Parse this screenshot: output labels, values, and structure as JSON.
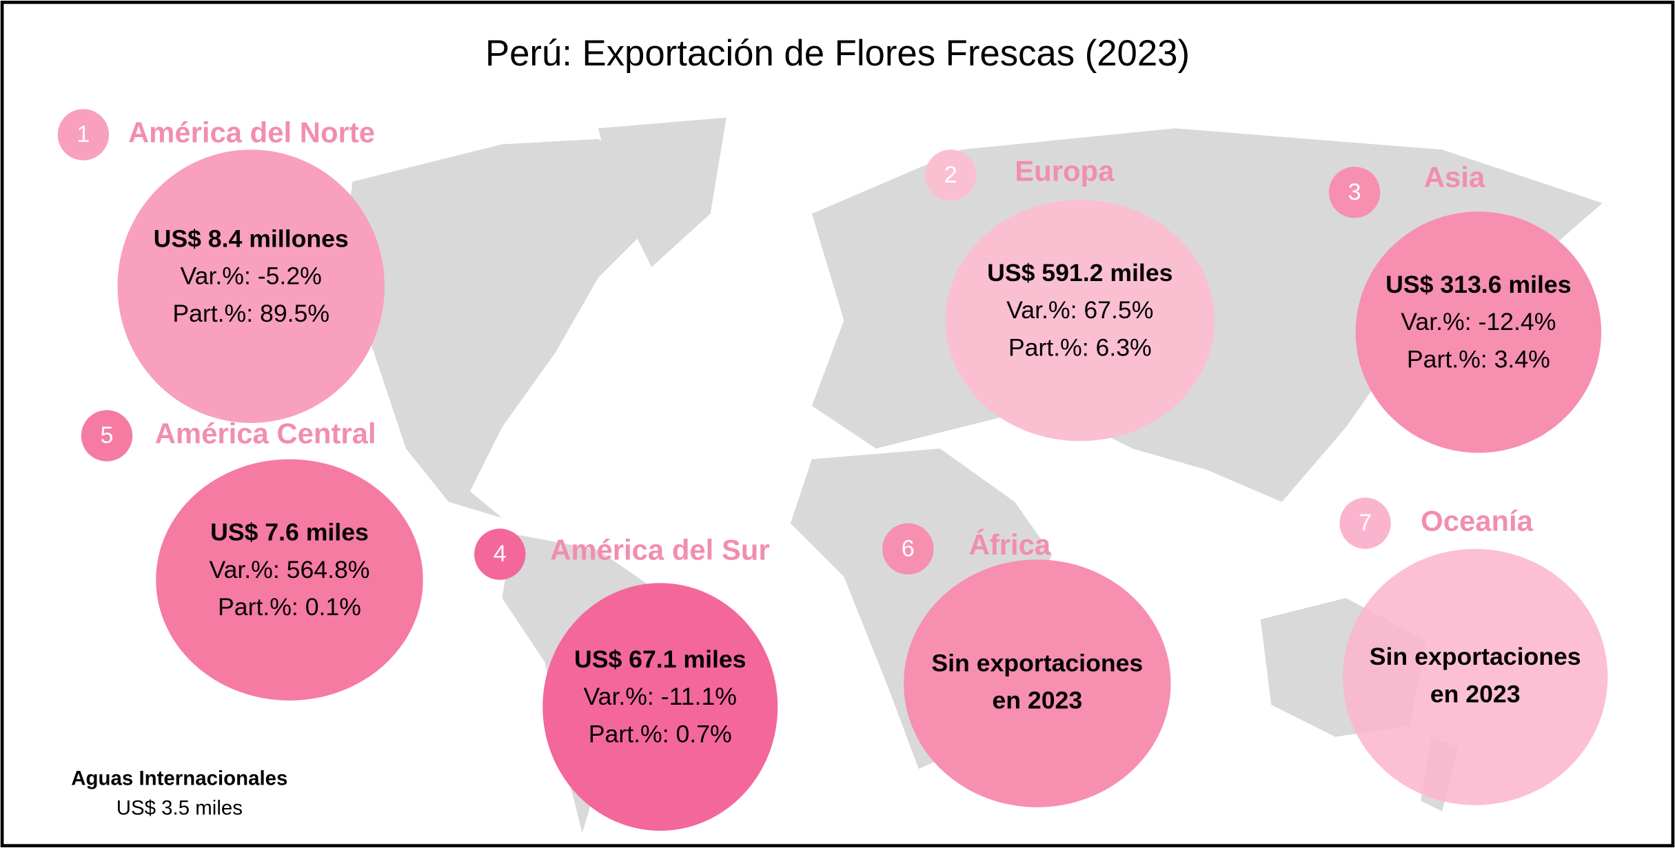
{
  "title": "Perú: Exportación de Flores Frescas (2023)",
  "regions": [
    {
      "number": 1,
      "name": "América del Norte",
      "color": "#f8a0bd",
      "lines": [
        "US$ 8.4 millones",
        "Var.%: -5.2%",
        "Part.%: 89.5%"
      ]
    },
    {
      "number": 2,
      "name": "Europa",
      "color": "#fbbfd2",
      "lines": [
        "US$ 591.2 miles",
        "Var.%: 67.5%",
        "Part.%: 6.3%"
      ]
    },
    {
      "number": 3,
      "name": "Asia",
      "color": "#f78fb0",
      "lines": [
        "US$ 313.6 miles",
        "Var.%: -12.4%",
        "Part.%: 3.4%"
      ]
    },
    {
      "number": 4,
      "name": "América del Sur",
      "color": "#f4679a",
      "lines": [
        "US$ 67.1 miles",
        "Var.%: -11.1%",
        "Part.%: 0.7%"
      ]
    },
    {
      "number": 5,
      "name": "América Central",
      "color": "#f57ba3",
      "lines": [
        "US$ 7.6 miles",
        "Var.%: 564.8%",
        "Part.%: 0.1%"
      ]
    },
    {
      "number": 6,
      "name": "África",
      "color": "#f78fb0",
      "lines": [
        "Sin exportaciones",
        "en 2023"
      ]
    },
    {
      "number": 7,
      "name": "Oceanía",
      "color": "#fbb4cd",
      "lines": [
        "Sin exportaciones",
        "en 2023"
      ]
    }
  ],
  "footer": {
    "label": "Aguas Internacionales",
    "value": "US$ 3.5 miles"
  }
}
